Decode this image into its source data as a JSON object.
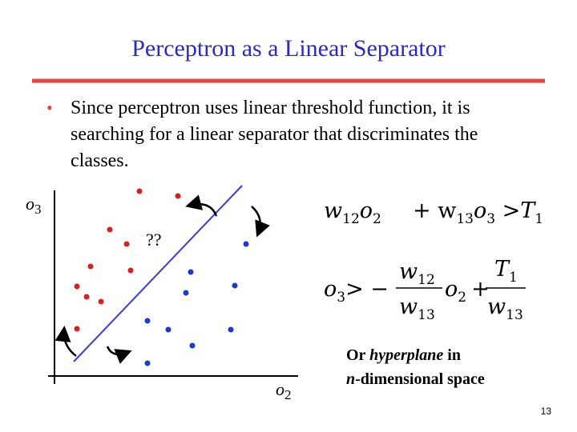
{
  "title": "Perceptron as a Linear Separator",
  "bullet": {
    "lines": [
      "Since perceptron uses linear threshold function, it is",
      "searching for a linear separator that discriminates the",
      "classes."
    ]
  },
  "plot": {
    "y_label": {
      "base": "o",
      "sub": "3"
    },
    "x_label": {
      "base": "o",
      "sub": "2"
    },
    "question": "??"
  },
  "equation1": {
    "a": "w",
    "a_sub": "12",
    "b": "o",
    "b_sub": "2",
    "plus": "+ w",
    "c_sub": "13",
    "d": "o",
    "d_sub": "3",
    "gt": ">",
    "e": "T",
    "e_sub": "1"
  },
  "equation2": {
    "lhs": "o",
    "lhs_sub": "3",
    "gt": "> −",
    "num1": "w",
    "num1_sub": "12",
    "den1": "w",
    "den1_sub": "13",
    "mid": "o",
    "mid_sub": "2",
    "plus": "+",
    "num2": "T",
    "num2_sub": "1",
    "den2": "w",
    "den2_sub": "13"
  },
  "annotation": {
    "line1_a": "Or ",
    "line1_em": "hyperplane",
    "line1_b": " in",
    "line2_em": "n",
    "line2_b": "-dimensional space"
  },
  "page_number": "13"
}
